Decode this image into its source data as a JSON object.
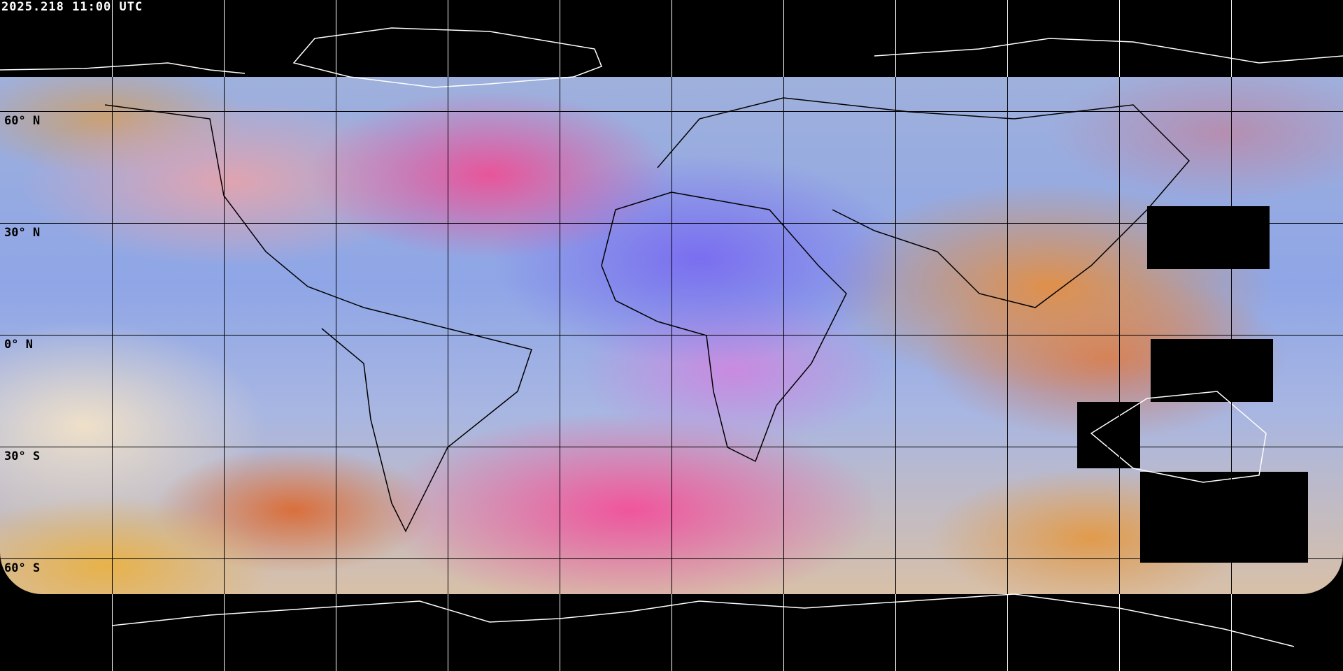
{
  "timestamp": "2025.218 11:00 UTC",
  "latitude_labels": [
    "60° N",
    "30° N",
    "0° N",
    "30° S",
    "60° S"
  ],
  "colors": {
    "background": "#000000",
    "grid_over_imagery": "#000000",
    "grid_over_background": "#ffffff",
    "coastline_land": "#000000",
    "coastline_polar": "#ffffff"
  },
  "projection": "equirectangular",
  "grid_spacing_degrees": 30
}
